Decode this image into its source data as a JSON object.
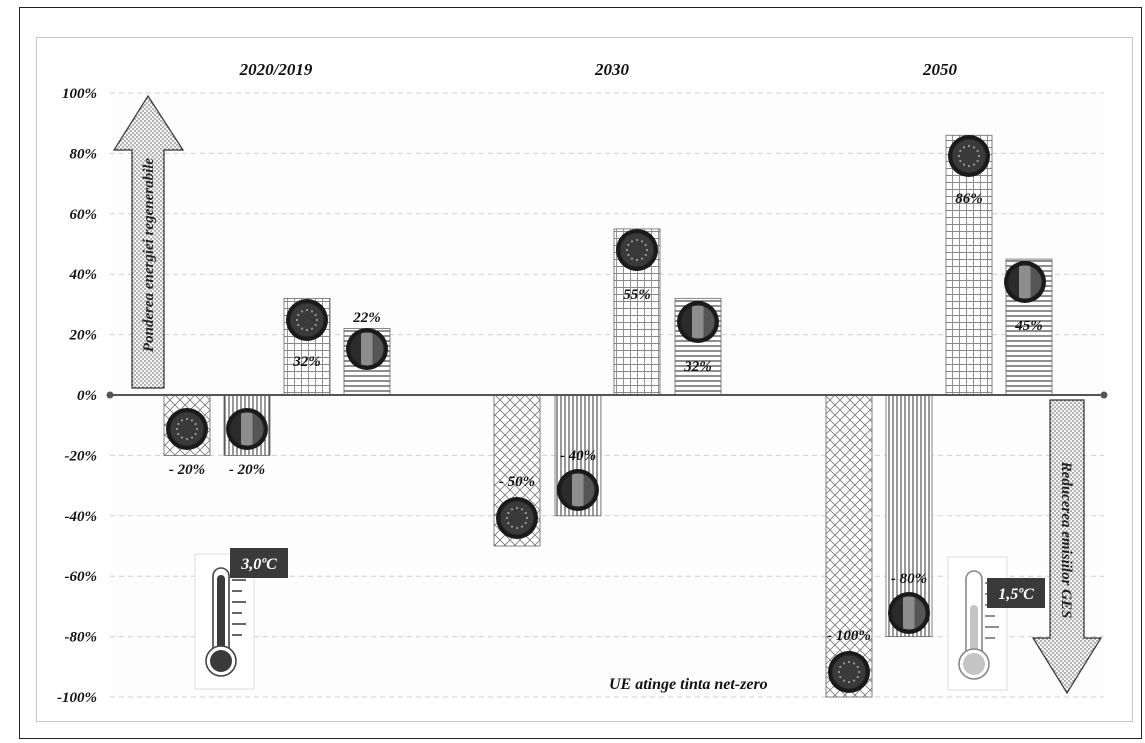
{
  "chart_data": {
    "type": "bar",
    "categories": [
      "2020/2019",
      "2030",
      "2050"
    ],
    "series": [
      {
        "kind": "emissions",
        "flag": "EU",
        "values": [
          -20,
          -50,
          -100
        ],
        "labels": [
          "- 20%",
          "- 50%",
          "- 100%"
        ],
        "pattern": "crosshatch"
      },
      {
        "kind": "emissions",
        "flag": "RO",
        "values": [
          -20,
          -40,
          -80
        ],
        "labels": [
          "- 20%",
          "- 40%",
          "- 80%"
        ],
        "pattern": "vertical"
      },
      {
        "kind": "renewables",
        "flag": "EU",
        "values": [
          32,
          55,
          86
        ],
        "labels": [
          "32%",
          "55%",
          "86%"
        ],
        "pattern": "grid"
      },
      {
        "kind": "renewables",
        "flag": "RO",
        "values": [
          22,
          32,
          45
        ],
        "labels": [
          "22%",
          "32%",
          "45%"
        ],
        "pattern": "horizontal"
      }
    ],
    "yticks": [
      "100%",
      "80%",
      "60%",
      "40%",
      "20%",
      "0%",
      "-20%",
      "-40%",
      "-60%",
      "-80%",
      "-100%"
    ],
    "ylim": [
      -100,
      100
    ],
    "grid": true,
    "annotations": {
      "up_arrow": "Ponderea energiei regenerabile",
      "down_arrow": "Reducerea emisiilor GES",
      "net_zero": "UE atinge tinta net-zero",
      "temp_2019": "3,0ºC",
      "temp_2050": "1,5ºC"
    }
  },
  "colors": {
    "flag_dark": "#2b2b2b",
    "flag_mid": "#8a8a8a",
    "label_box": "#3a3a3a",
    "grid": "#d0d0d0",
    "plot_bg": "#fdfdfd"
  }
}
